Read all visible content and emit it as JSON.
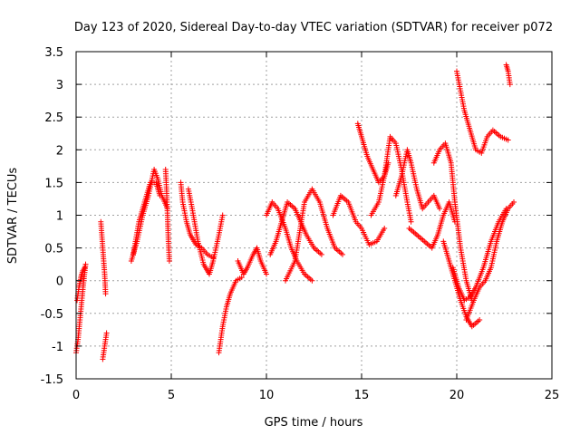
{
  "chart_data": {
    "type": "scatter",
    "title": "Day 123 of 2020, Sidereal Day-to-day VTEC variation (SDTVAR) for receiver p072",
    "xlabel": "GPS time / hours",
    "ylabel": "SDTVAR / TECUs",
    "xlim": [
      0,
      25
    ],
    "ylim": [
      -1.5,
      3.5
    ],
    "grid": true,
    "marker": "+",
    "color": "#ff0000",
    "x_ticks": [
      0,
      5,
      10,
      15,
      20,
      25
    ],
    "y_ticks": [
      -1.5,
      -1,
      -0.5,
      0,
      0.5,
      1,
      1.5,
      2,
      2.5,
      3,
      3.5
    ],
    "x_tick_labels": [
      "0",
      "5",
      "10",
      "15",
      "20",
      "25"
    ],
    "y_tick_labels": [
      "-1.5",
      "-1",
      "-0.5",
      "0",
      "0.5",
      "1",
      "1.5",
      "2",
      "2.5",
      "3",
      "3.5"
    ],
    "series": [
      {
        "name": "s1",
        "points": [
          [
            0,
            -1.1
          ],
          [
            0.1,
            -0.9
          ],
          [
            0.2,
            -0.6
          ],
          [
            0.3,
            -0.3
          ],
          [
            0.4,
            0
          ],
          [
            0.5,
            0.25
          ]
        ]
      },
      {
        "name": "s2",
        "points": [
          [
            0.05,
            -0.3
          ],
          [
            0.15,
            -0.1
          ],
          [
            0.25,
            0.05
          ],
          [
            0.35,
            0.15
          ],
          [
            0.45,
            0.2
          ]
        ]
      },
      {
        "name": "s3",
        "points": [
          [
            1.3,
            0.9
          ],
          [
            1.35,
            0.7
          ],
          [
            1.4,
            0.5
          ],
          [
            1.45,
            0.3
          ],
          [
            1.5,
            0.1
          ],
          [
            1.55,
            -0.2
          ]
        ]
      },
      {
        "name": "s4",
        "points": [
          [
            1.4,
            -1.2
          ],
          [
            1.5,
            -1.0
          ],
          [
            1.6,
            -0.8
          ]
        ]
      },
      {
        "name": "s5",
        "points": [
          [
            2.9,
            0.3
          ],
          [
            3.2,
            0.6
          ],
          [
            3.5,
            1.0
          ],
          [
            3.8,
            1.3
          ],
          [
            4.1,
            1.7
          ],
          [
            4.3,
            1.55
          ],
          [
            4.5,
            1.3
          ],
          [
            4.8,
            1.1
          ]
        ]
      },
      {
        "name": "s6",
        "points": [
          [
            3,
            0.4
          ],
          [
            3.3,
            0.9
          ],
          [
            3.6,
            1.2
          ],
          [
            3.9,
            1.5
          ],
          [
            4.2,
            1.5
          ],
          [
            4.4,
            1.3
          ]
        ]
      },
      {
        "name": "s7",
        "points": [
          [
            4.7,
            1.7
          ],
          [
            4.75,
            1.4
          ],
          [
            4.8,
            1.0
          ],
          [
            4.85,
            0.6
          ],
          [
            4.9,
            0.3
          ]
        ]
      },
      {
        "name": "s8",
        "points": [
          [
            5.5,
            1.5
          ],
          [
            5.6,
            1.2
          ],
          [
            5.8,
            0.9
          ],
          [
            6,
            0.7
          ],
          [
            6.3,
            0.55
          ],
          [
            6.6,
            0.5
          ],
          [
            6.9,
            0.4
          ],
          [
            7.2,
            0.35
          ]
        ]
      },
      {
        "name": "s9",
        "points": [
          [
            5.9,
            1.4
          ],
          [
            6.1,
            1.1
          ],
          [
            6.4,
            0.6
          ],
          [
            6.7,
            0.25
          ],
          [
            7,
            0.1
          ],
          [
            7.2,
            0.3
          ],
          [
            7.5,
            0.7
          ],
          [
            7.7,
            1.0
          ]
        ]
      },
      {
        "name": "s10",
        "points": [
          [
            7.5,
            -1.1
          ],
          [
            7.7,
            -0.7
          ],
          [
            7.9,
            -0.4
          ],
          [
            8.1,
            -0.2
          ],
          [
            8.4,
            0
          ],
          [
            8.7,
            0.05
          ]
        ]
      },
      {
        "name": "s11",
        "points": [
          [
            8.5,
            0.3
          ],
          [
            8.8,
            0.1
          ],
          [
            9.0,
            0.2
          ],
          [
            9.3,
            0.4
          ],
          [
            9.5,
            0.5
          ],
          [
            9.7,
            0.3
          ],
          [
            10.0,
            0.1
          ]
        ]
      },
      {
        "name": "s12",
        "points": [
          [
            10.0,
            1.0
          ],
          [
            10.3,
            1.2
          ],
          [
            10.6,
            1.1
          ],
          [
            11.0,
            0.8
          ],
          [
            11.3,
            0.5
          ],
          [
            11.6,
            0.3
          ],
          [
            12.0,
            0.1
          ],
          [
            12.4,
            0.0
          ]
        ]
      },
      {
        "name": "s13",
        "points": [
          [
            10.2,
            0.4
          ],
          [
            10.5,
            0.6
          ],
          [
            10.8,
            0.9
          ],
          [
            11.1,
            1.2
          ],
          [
            11.5,
            1.1
          ],
          [
            11.8,
            0.9
          ],
          [
            12.1,
            0.7
          ],
          [
            12.5,
            0.5
          ],
          [
            12.9,
            0.4
          ]
        ]
      },
      {
        "name": "s14",
        "points": [
          [
            11.0,
            0.0
          ],
          [
            11.5,
            0.3
          ],
          [
            12.0,
            1.2
          ],
          [
            12.4,
            1.4
          ],
          [
            12.8,
            1.2
          ],
          [
            13.2,
            0.8
          ],
          [
            13.6,
            0.5
          ],
          [
            14.0,
            0.4
          ]
        ]
      },
      {
        "name": "s15",
        "points": [
          [
            13.5,
            1.0
          ],
          [
            13.9,
            1.3
          ],
          [
            14.3,
            1.2
          ],
          [
            14.7,
            0.9
          ],
          [
            15.0,
            0.8
          ],
          [
            15.4,
            0.55
          ],
          [
            15.8,
            0.6
          ],
          [
            16.2,
            0.8
          ]
        ]
      },
      {
        "name": "s16",
        "points": [
          [
            14.8,
            2.4
          ],
          [
            15.0,
            2.2
          ],
          [
            15.3,
            1.9
          ],
          [
            15.6,
            1.7
          ],
          [
            15.9,
            1.5
          ],
          [
            16.2,
            1.6
          ],
          [
            16.4,
            1.8
          ]
        ]
      },
      {
        "name": "s17",
        "points": [
          [
            15.5,
            1.0
          ],
          [
            15.9,
            1.2
          ],
          [
            16.2,
            1.6
          ],
          [
            16.5,
            2.2
          ],
          [
            16.8,
            2.1
          ],
          [
            17.1,
            1.7
          ],
          [
            17.4,
            1.2
          ],
          [
            17.6,
            0.9
          ]
        ]
      },
      {
        "name": "s18",
        "points": [
          [
            16.8,
            1.3
          ],
          [
            17.1,
            1.6
          ],
          [
            17.4,
            2.0
          ],
          [
            17.6,
            1.8
          ],
          [
            17.9,
            1.4
          ],
          [
            18.2,
            1.1
          ],
          [
            18.5,
            1.2
          ],
          [
            18.8,
            1.3
          ],
          [
            19.1,
            1.1
          ]
        ]
      },
      {
        "name": "s19",
        "points": [
          [
            17.5,
            0.8
          ],
          [
            17.9,
            0.7
          ],
          [
            18.3,
            0.6
          ],
          [
            18.7,
            0.5
          ],
          [
            19.0,
            0.7
          ],
          [
            19.3,
            1.0
          ],
          [
            19.6,
            1.2
          ],
          [
            19.9,
            0.9
          ]
        ]
      },
      {
        "name": "s20",
        "points": [
          [
            18.8,
            1.8
          ],
          [
            19.1,
            2.0
          ],
          [
            19.4,
            2.1
          ],
          [
            19.7,
            1.8
          ],
          [
            19.9,
            1.2
          ],
          [
            20.2,
            0.5
          ],
          [
            20.5,
            0.0
          ],
          [
            20.8,
            -0.3
          ]
        ]
      },
      {
        "name": "s21",
        "points": [
          [
            20.0,
            3.2
          ],
          [
            20.2,
            2.9
          ],
          [
            20.4,
            2.6
          ],
          [
            20.7,
            2.3
          ],
          [
            21.0,
            2.0
          ],
          [
            21.3,
            1.95
          ],
          [
            21.6,
            2.2
          ],
          [
            21.9,
            2.3
          ],
          [
            22.3,
            2.2
          ],
          [
            22.7,
            2.15
          ]
        ]
      },
      {
        "name": "s22",
        "points": [
          [
            22.6,
            3.3
          ],
          [
            22.7,
            3.2
          ],
          [
            22.8,
            3.0
          ]
        ]
      },
      {
        "name": "s23",
        "points": [
          [
            19.3,
            0.6
          ],
          [
            19.6,
            0.3
          ],
          [
            19.9,
            0.0
          ],
          [
            20.2,
            -0.3
          ],
          [
            20.5,
            -0.55
          ],
          [
            20.8,
            -0.7
          ],
          [
            21.2,
            -0.6
          ]
        ]
      },
      {
        "name": "s24",
        "points": [
          [
            20.5,
            -0.6
          ],
          [
            20.9,
            -0.3
          ],
          [
            21.2,
            -0.1
          ],
          [
            21.5,
            0.0
          ],
          [
            21.8,
            0.2
          ],
          [
            22.1,
            0.6
          ],
          [
            22.4,
            0.9
          ],
          [
            22.7,
            1.1
          ],
          [
            23.0,
            1.2
          ]
        ]
      },
      {
        "name": "s25",
        "points": [
          [
            19.8,
            0.2
          ],
          [
            20.1,
            -0.1
          ],
          [
            20.4,
            -0.3
          ],
          [
            20.7,
            -0.25
          ],
          [
            21.0,
            -0.1
          ],
          [
            21.4,
            0.2
          ],
          [
            21.8,
            0.6
          ],
          [
            22.2,
            0.9
          ],
          [
            22.6,
            1.1
          ]
        ]
      }
    ]
  }
}
